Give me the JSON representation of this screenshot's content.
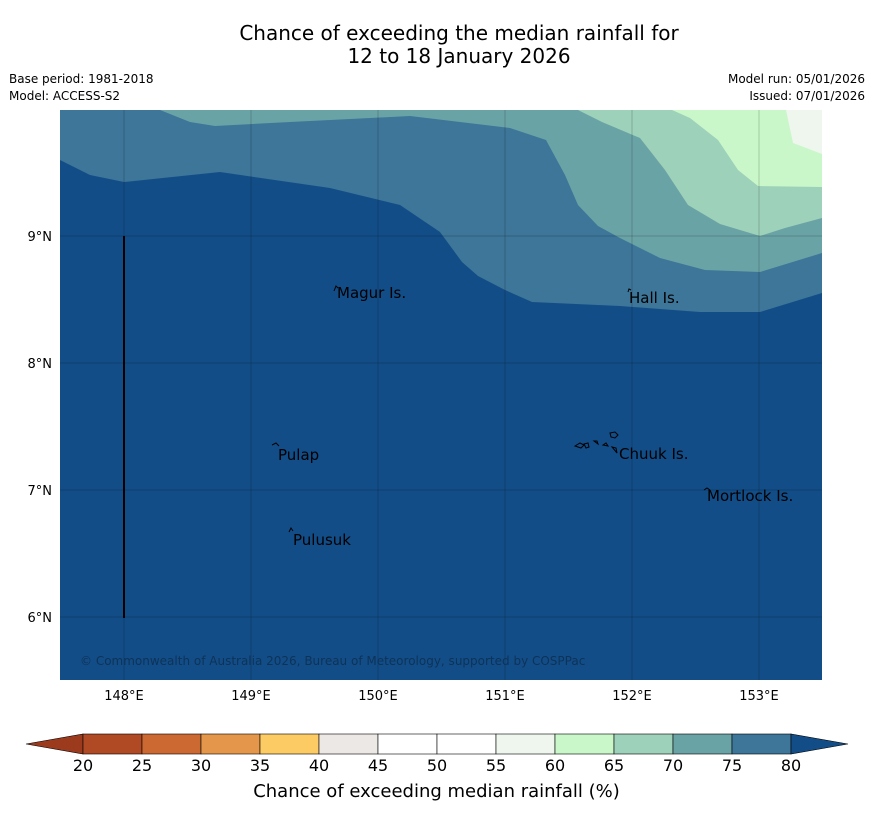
{
  "title": {
    "line1": "Chance of exceeding the median rainfall for",
    "line2": "12 to 18 January 2026"
  },
  "meta": {
    "base_period": "Base period: 1981-2018",
    "model": "Model: ACCESS-S2",
    "model_run": "Model run: 05/01/2026",
    "issued": "Issued: 07/01/2026"
  },
  "map": {
    "lon_range": [
      147.5,
      153.5
    ],
    "lat_range": [
      5.5,
      10.0
    ],
    "lon_ticks": [
      "148°E",
      "149°E",
      "150°E",
      "151°E",
      "152°E",
      "153°E"
    ],
    "lat_ticks": [
      "9°N",
      "8°N",
      "7°N",
      "6°N"
    ],
    "places": [
      {
        "name": "Magur Is.",
        "lon": 149.68,
        "lat": 8.58
      },
      {
        "name": "Hall Is.",
        "lon": 151.97,
        "lat": 8.54
      },
      {
        "name": "Pulap",
        "lon": 149.18,
        "lat": 7.3
      },
      {
        "name": "Chuuk Is.",
        "lon": 151.88,
        "lat": 7.3
      },
      {
        "name": "Mortlock Is.",
        "lon": 152.58,
        "lat": 6.97
      },
      {
        "name": "Pulusuk",
        "lon": 149.33,
        "lat": 6.63
      }
    ],
    "copyright": "© Commonwealth of Australia 2026, Bureau of Meteorology, supported by COSPPac",
    "bands": [
      {
        "range": "75-80",
        "color": "#3d7699"
      },
      {
        "range": "70-75",
        "color": "#6aa3a5"
      },
      {
        "range": "65-70",
        "color": "#9dd1b9"
      },
      {
        "range": "60-65",
        "color": "#c9f7c9"
      },
      {
        "range": "55-60",
        "color": "#eef6ee"
      }
    ],
    "base_color": "#134d87"
  },
  "colorbar": {
    "ticks": [
      "20",
      "25",
      "30",
      "35",
      "40",
      "45",
      "50",
      "55",
      "60",
      "65",
      "70",
      "75",
      "80"
    ],
    "colors": [
      "#b04a24",
      "#cc6932",
      "#e4974a",
      "#fccb64",
      "#ece8e5",
      "#ffffff",
      "#ffffff",
      "#eef6ee",
      "#c9f7c9",
      "#9dd1b9",
      "#6aa3a5",
      "#3d7699"
    ],
    "under_color": "#9c3a1e",
    "over_color": "#134d87",
    "label": "Chance of exceeding median rainfall (%)"
  }
}
